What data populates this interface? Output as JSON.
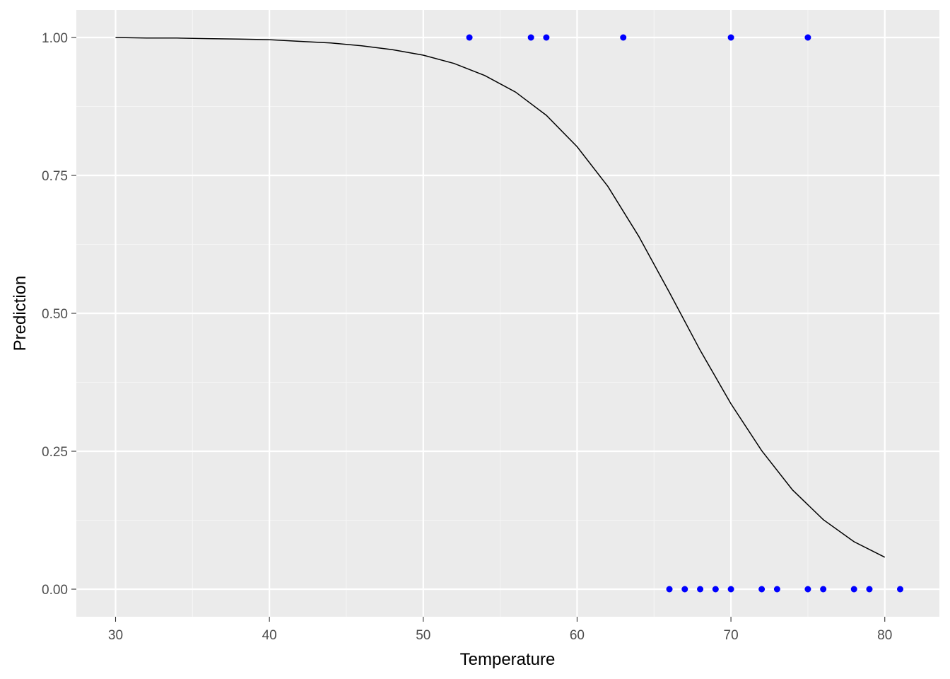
{
  "chart_data": {
    "type": "scatter",
    "title": "",
    "xlabel": "Temperature",
    "ylabel": "Prediction",
    "xlim": [
      27.45,
      83.55
    ],
    "ylim": [
      -0.05,
      1.05
    ],
    "x_ticks": [
      30,
      40,
      50,
      60,
      70,
      80
    ],
    "x_minor_ticks": [
      35,
      45,
      55,
      65,
      75
    ],
    "y_ticks": [
      0,
      0.25,
      0.5,
      0.75,
      1
    ],
    "y_tick_labels": [
      "0.00",
      "0.25",
      "0.50",
      "0.75",
      "1.00"
    ],
    "y_minor_ticks": [
      0.125,
      0.375,
      0.625,
      0.875
    ],
    "grid": true,
    "legend": "none",
    "points": {
      "color": "#0000ff",
      "x": [
        53,
        57,
        58,
        63,
        70,
        75,
        66,
        67,
        68,
        69,
        70,
        72,
        73,
        75,
        76,
        78,
        79,
        81
      ],
      "y": [
        1,
        1,
        1,
        1,
        1,
        1,
        0,
        0,
        0,
        0,
        0,
        0,
        0,
        0,
        0,
        0,
        0,
        0
      ]
    },
    "curve": {
      "type": "line",
      "color": "#000000",
      "x": [
        30,
        32,
        34,
        36,
        38,
        40,
        42,
        44,
        46,
        48,
        50,
        52,
        54,
        56,
        58,
        60,
        62,
        64,
        66,
        68,
        70,
        72,
        74,
        76,
        78,
        80
      ],
      "y": [
        1.0,
        0.999,
        0.999,
        0.998,
        0.997,
        0.996,
        0.993,
        0.99,
        0.985,
        0.978,
        0.968,
        0.953,
        0.931,
        0.901,
        0.859,
        0.802,
        0.73,
        0.64,
        0.538,
        0.433,
        0.336,
        0.251,
        0.18,
        0.126,
        0.086,
        0.058
      ]
    },
    "colors": {
      "panel_background": "#ebebeb",
      "grid_major": "#ffffff",
      "grid_minor": "#f5f5f5",
      "tick_text": "#4d4d4d"
    }
  }
}
